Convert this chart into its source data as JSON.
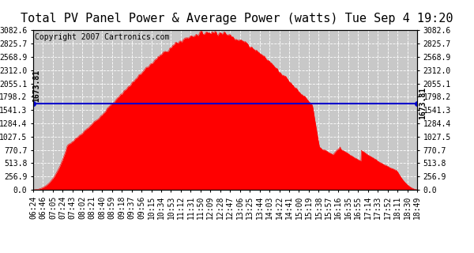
{
  "title": "Total PV Panel Power & Average Power (watts) Tue Sep 4 19:20",
  "copyright": "Copyright 2007 Cartronics.com",
  "average_power": 1673.81,
  "y_max": 3082.6,
  "y_ticks": [
    0.0,
    256.9,
    513.8,
    770.7,
    1027.5,
    1284.4,
    1541.3,
    1798.2,
    2055.1,
    2312.0,
    2568.9,
    2825.7,
    3082.6
  ],
  "y_ticks_display": [
    "0.0",
    "256.9",
    "513.8",
    "770.7",
    "1027.5",
    "1284.4",
    "1541.3",
    "1798.2",
    "2055.1",
    "2312.0",
    "2568.9",
    "2825.7",
    "3082.6"
  ],
  "fill_color": "#ff0000",
  "line_color": "#0000cc",
  "bg_color": "#ffffff",
  "plot_bg_color": "#c8c8c8",
  "grid_color": "#ffffff",
  "title_fontsize": 11,
  "copyright_fontsize": 7,
  "tick_fontsize": 7,
  "x_tick_labels": [
    "06:24",
    "06:46",
    "07:05",
    "07:24",
    "07:43",
    "08:02",
    "08:21",
    "08:40",
    "08:59",
    "09:18",
    "09:37",
    "09:56",
    "10:15",
    "10:34",
    "10:53",
    "11:12",
    "11:31",
    "11:50",
    "12:09",
    "12:28",
    "12:47",
    "13:06",
    "13:25",
    "13:44",
    "14:03",
    "14:22",
    "14:41",
    "15:00",
    "15:19",
    "15:38",
    "15:57",
    "16:16",
    "16:35",
    "16:55",
    "17:14",
    "17:33",
    "17:52",
    "18:11",
    "18:30",
    "18:49"
  ]
}
